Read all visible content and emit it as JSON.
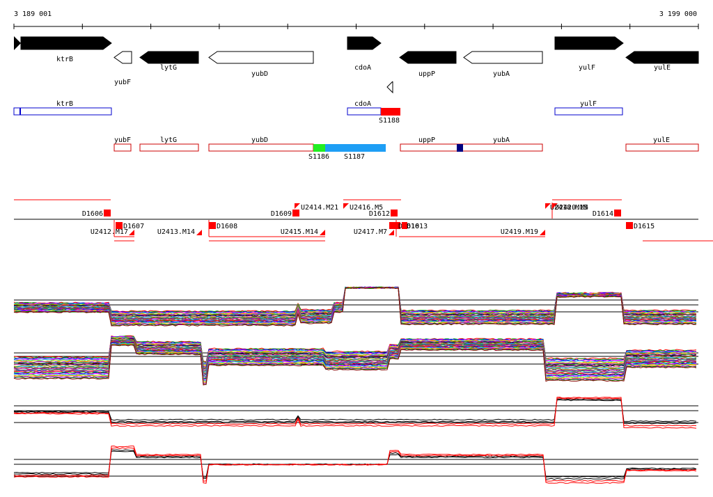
{
  "ruler": {
    "start_label": "3 189 001",
    "end_label": "3 199 000"
  },
  "genes": [
    {
      "name": "ktrB",
      "strand": "+",
      "fill": "black"
    },
    {
      "name": "yubF",
      "strand": "-",
      "fill": "white"
    },
    {
      "name": "lytG",
      "strand": "-",
      "fill": "black"
    },
    {
      "name": "yubD",
      "strand": "-",
      "fill": "white"
    },
    {
      "name": "cdoA",
      "strand": "+",
      "fill": "black"
    },
    {
      "name": "uppP",
      "strand": "-",
      "fill": "black"
    },
    {
      "name": "yubA",
      "strand": "-",
      "fill": "white"
    },
    {
      "name": "yulF",
      "strand": "+",
      "fill": "black"
    },
    {
      "name": "yulE",
      "strand": "-",
      "fill": "black"
    }
  ],
  "forward_boxes": [
    {
      "label": "ktrB"
    },
    {
      "label": "cdoA"
    },
    {
      "label": "yulF"
    }
  ],
  "reverse_boxes": [
    {
      "label": "yubF"
    },
    {
      "label": "lytG"
    },
    {
      "label": "yubD"
    },
    {
      "label": "uppP"
    },
    {
      "label": "yubA"
    },
    {
      "label": "yulE"
    }
  ],
  "segments": [
    {
      "label": "S1188",
      "color": "#ff0000"
    },
    {
      "label": "S1186",
      "color": "#22ee22"
    },
    {
      "label": "S1187",
      "color": "#1e9ef5"
    },
    {
      "label": "",
      "color": "#000080"
    }
  ],
  "features_top": [
    {
      "label": "D1606"
    },
    {
      "label": "D1609"
    },
    {
      "label": "U2414.M21"
    },
    {
      "label": "U2416.M5"
    },
    {
      "label": "D1612"
    },
    {
      "label": "U2418.M15"
    },
    {
      "label": "U2420.M4"
    },
    {
      "label": "D1614"
    }
  ],
  "features_bottom": [
    {
      "label": "D1607"
    },
    {
      "label": "U2412.M17"
    },
    {
      "label": "U2413.M14"
    },
    {
      "label": "D1608"
    },
    {
      "label": "U2415.M14"
    },
    {
      "label": "U2417.M7"
    },
    {
      "label": "D1610"
    },
    {
      "label": "D1613"
    },
    {
      "label": "U2419.M19"
    },
    {
      "label": "D1615"
    }
  ],
  "colors": {
    "gene_outline": "#000000",
    "forward_box": "#0000cc",
    "reverse_box": "#cc0000",
    "feature": "#ff0000",
    "profile_highlight": "#ff0000",
    "axis": "#000000"
  }
}
